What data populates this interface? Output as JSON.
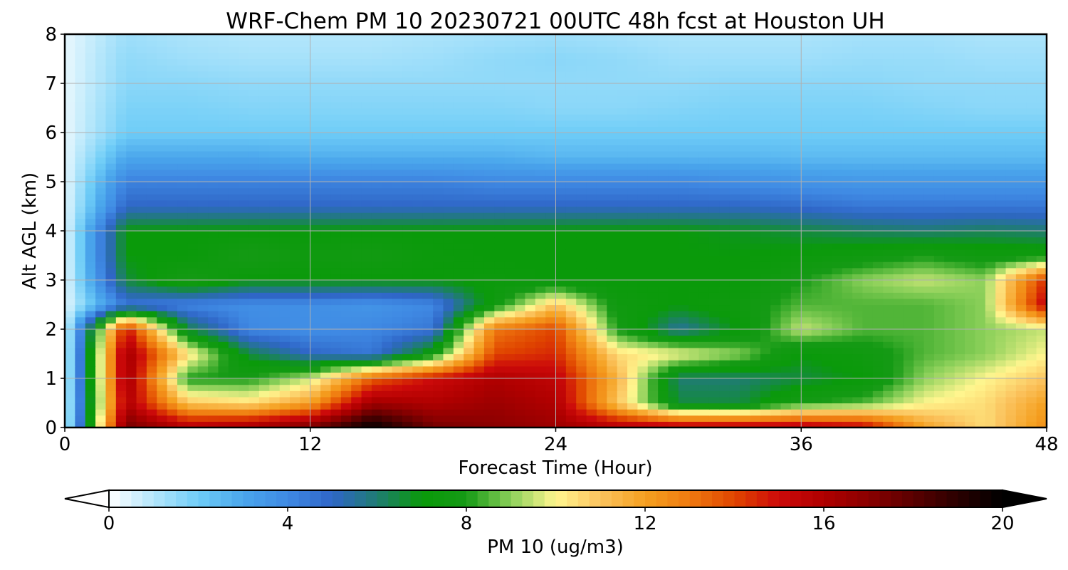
{
  "chart_data": {
    "type": "heatmap",
    "title": "WRF-Chem PM 10  20230721 00UTC 48h fcst at Houston UH",
    "xlabel": "Forecast Time (Hour)",
    "ylabel": "Alt AGL (km)",
    "xlim": [
      0,
      48
    ],
    "ylim": [
      0,
      8
    ],
    "x_ticks": [
      "0",
      "12",
      "24",
      "36",
      "48"
    ],
    "y_ticks": [
      "0",
      "1",
      "2",
      "3",
      "4",
      "5",
      "6",
      "7",
      "8"
    ],
    "grid": true,
    "x": [
      0,
      3,
      6,
      9,
      12,
      15,
      18,
      21,
      24,
      27,
      30,
      33,
      36,
      39,
      42,
      45,
      48
    ],
    "y": [
      0,
      0.5,
      1,
      1.5,
      2,
      2.5,
      3,
      3.5,
      4,
      4.5,
      5,
      5.5,
      6,
      6.5,
      7,
      7.5,
      8
    ],
    "z": [
      [
        0.3,
        17.5,
        16.0,
        16.5,
        17.5,
        20.0,
        17.5,
        17.0,
        16.5,
        16.0,
        16.0,
        16.0,
        16.0,
        15.5,
        12.0,
        10.5,
        12.5
      ],
      [
        0.3,
        16.0,
        11.0,
        10.5,
        12.0,
        16.5,
        16.0,
        16.5,
        16.0,
        11.0,
        6.5,
        6.5,
        8.0,
        8.5,
        10.0,
        10.5,
        12.0
      ],
      [
        0.3,
        16.5,
        8.0,
        8.0,
        9.5,
        13.5,
        15.0,
        16.0,
        15.5,
        11.5,
        6.0,
        6.0,
        6.5,
        7.0,
        9.0,
        10.0,
        11.0
      ],
      [
        0.3,
        16.5,
        10.5,
        6.5,
        5.0,
        4.5,
        7.5,
        14.0,
        14.5,
        10.5,
        10.0,
        9.0,
        7.0,
        7.5,
        8.5,
        9.0,
        10.0
      ],
      [
        0.3,
        15.0,
        6.5,
        4.0,
        3.8,
        4.0,
        4.5,
        13.0,
        14.0,
        8.0,
        5.5,
        7.0,
        9.5,
        8.5,
        8.5,
        9.0,
        9.5
      ],
      [
        0.3,
        4.5,
        4.0,
        3.8,
        3.8,
        3.6,
        4.0,
        7.5,
        11.0,
        7.5,
        7.0,
        7.5,
        8.5,
        8.5,
        8.5,
        9.0,
        15.5
      ],
      [
        0.3,
        6.5,
        8.0,
        7.0,
        7.0,
        7.0,
        7.0,
        7.2,
        7.0,
        7.0,
        7.0,
        7.0,
        8.0,
        9.0,
        9.5,
        9.0,
        14.5
      ],
      [
        0.3,
        7.0,
        7.0,
        8.0,
        7.5,
        7.8,
        7.2,
        7.0,
        7.0,
        7.0,
        7.0,
        7.0,
        7.2,
        7.5,
        8.0,
        7.5,
        7.5
      ],
      [
        0.3,
        7.0,
        7.0,
        7.0,
        7.0,
        7.0,
        7.0,
        7.0,
        7.0,
        7.0,
        7.0,
        6.8,
        6.5,
        6.2,
        6.0,
        6.2,
        6.0
      ],
      [
        0.3,
        5.0,
        5.0,
        5.0,
        5.0,
        5.0,
        5.0,
        5.0,
        5.0,
        5.0,
        5.0,
        5.0,
        4.8,
        4.5,
        4.5,
        4.5,
        4.5
      ],
      [
        0.3,
        4.2,
        4.2,
        4.2,
        4.2,
        4.2,
        4.2,
        4.0,
        4.0,
        4.0,
        4.0,
        3.8,
        3.6,
        3.5,
        3.5,
        3.5,
        3.5
      ],
      [
        0.3,
        3.0,
        3.0,
        3.0,
        2.8,
        2.8,
        2.8,
        2.8,
        2.6,
        2.6,
        2.6,
        2.6,
        2.5,
        2.5,
        2.5,
        2.5,
        2.5
      ],
      [
        0.3,
        2.0,
        2.0,
        2.0,
        2.0,
        2.0,
        2.0,
        2.0,
        2.0,
        2.0,
        2.0,
        2.0,
        2.0,
        2.0,
        2.0,
        2.0,
        2.0
      ],
      [
        0.3,
        1.8,
        1.8,
        1.7,
        1.7,
        1.7,
        1.7,
        1.7,
        1.6,
        1.6,
        1.7,
        1.8,
        1.8,
        1.8,
        1.7,
        1.6,
        1.6
      ],
      [
        0.3,
        1.6,
        1.6,
        1.5,
        1.5,
        1.5,
        1.5,
        1.5,
        1.5,
        1.5,
        1.5,
        1.6,
        1.6,
        1.6,
        1.5,
        1.5,
        1.5
      ],
      [
        0.3,
        1.5,
        1.3,
        1.2,
        1.2,
        1.2,
        1.3,
        1.5,
        1.6,
        1.5,
        1.3,
        1.3,
        1.3,
        1.4,
        1.4,
        1.3,
        1.3
      ],
      [
        0.3,
        1.3,
        1.1,
        1.0,
        1.0,
        1.0,
        1.1,
        1.2,
        1.3,
        1.2,
        1.1,
        1.1,
        1.1,
        1.2,
        1.2,
        1.1,
        1.1
      ]
    ],
    "colorbar": {
      "label": "PM 10  (ug/m3)",
      "min": 0,
      "max": 20,
      "ticks": [
        "0",
        "4",
        "8",
        "12",
        "16",
        "20"
      ],
      "extend": "both",
      "stops": [
        [
          0,
          "#ffffff"
        ],
        [
          1,
          "#b3e6fb"
        ],
        [
          2,
          "#6fcdf7"
        ],
        [
          3,
          "#4aa6ec"
        ],
        [
          4,
          "#3f89e3"
        ],
        [
          5,
          "#2f66c7"
        ],
        [
          6,
          "#1f7c72"
        ],
        [
          7,
          "#0a9a0a"
        ],
        [
          8,
          "#159a15"
        ],
        [
          9,
          "#8cd05a"
        ],
        [
          10,
          "#fff68f"
        ],
        [
          11,
          "#fbc35e"
        ],
        [
          12,
          "#f5a020"
        ],
        [
          13,
          "#ef7a10"
        ],
        [
          14,
          "#e04500"
        ],
        [
          15,
          "#cc0a0a"
        ],
        [
          16,
          "#b00000"
        ],
        [
          17,
          "#8a0000"
        ],
        [
          18,
          "#5a0000"
        ],
        [
          19,
          "#2a0000"
        ],
        [
          20,
          "#000000"
        ]
      ]
    }
  }
}
